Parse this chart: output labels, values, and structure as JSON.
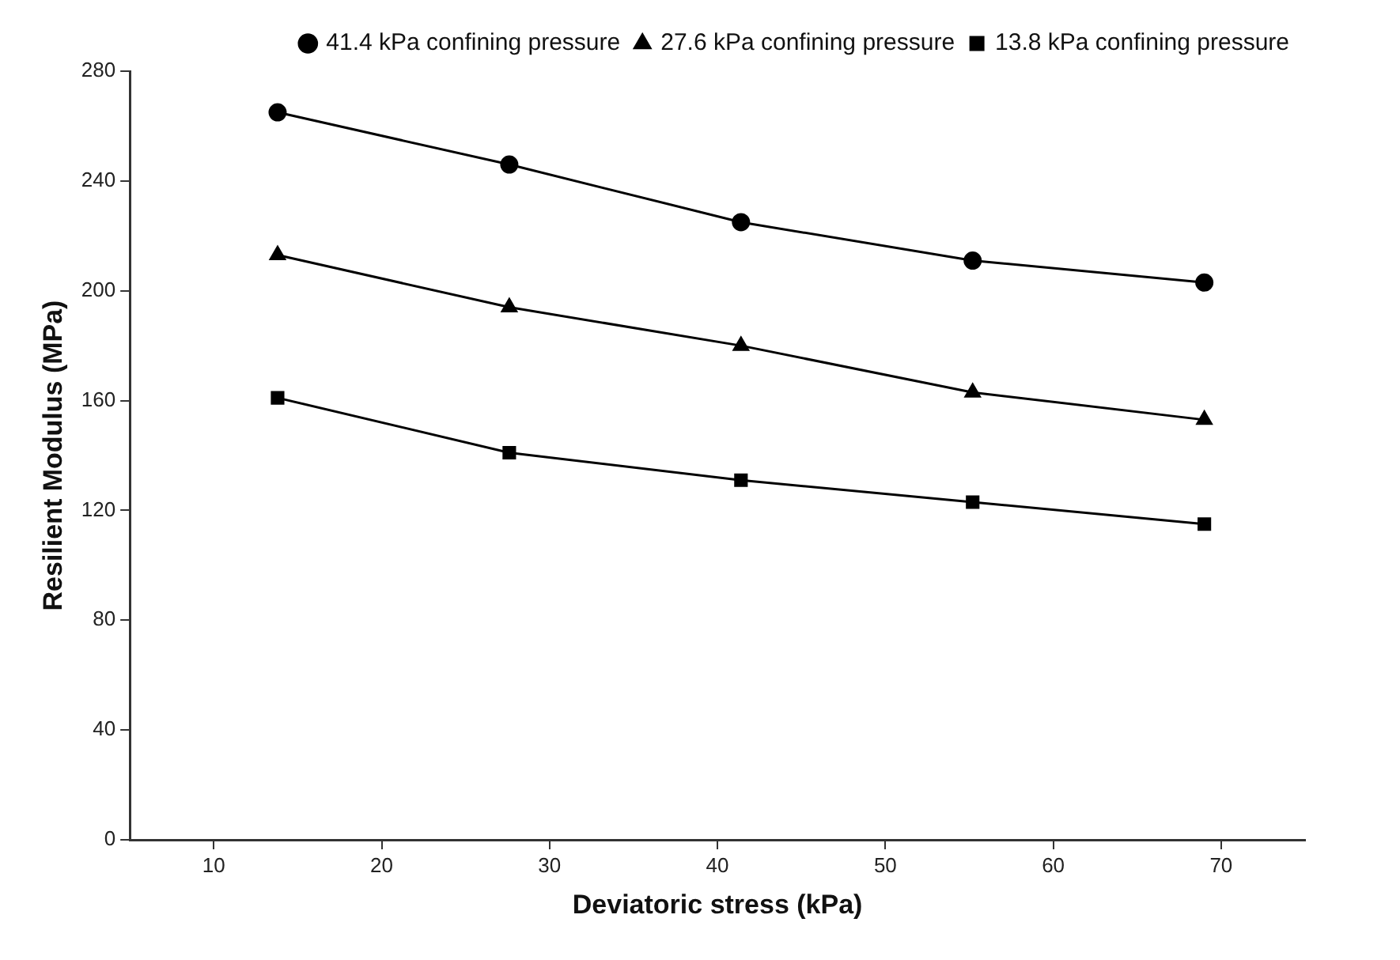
{
  "chart_data": {
    "type": "line",
    "xlabel": "Deviatoric stress (kPa)",
    "ylabel": "Resilient Modulus (MPa)",
    "x": [
      13.8,
      27.6,
      41.4,
      55.2,
      69
    ],
    "xlim": [
      5,
      75
    ],
    "xticks": [
      10,
      20,
      30,
      40,
      50,
      60,
      70
    ],
    "ylim": [
      0,
      280
    ],
    "yticks": [
      0,
      40,
      80,
      120,
      160,
      200,
      240,
      280
    ],
    "grid": false,
    "legend": "top right",
    "line_style": "solid",
    "series": [
      {
        "name": "41.4 kPa confining pressure",
        "color": "#000000",
        "marker": "circle",
        "values": [
          265,
          246,
          225,
          211,
          203
        ]
      },
      {
        "name": "27.6 kPa confining pressure",
        "color": "#000000",
        "marker": "triangle",
        "values": [
          213,
          194,
          180,
          163,
          153
        ]
      },
      {
        "name": "13.8 kPa confining pressure",
        "color": "#000000",
        "marker": "square",
        "values": [
          161,
          141,
          131,
          123,
          115
        ]
      }
    ]
  }
}
